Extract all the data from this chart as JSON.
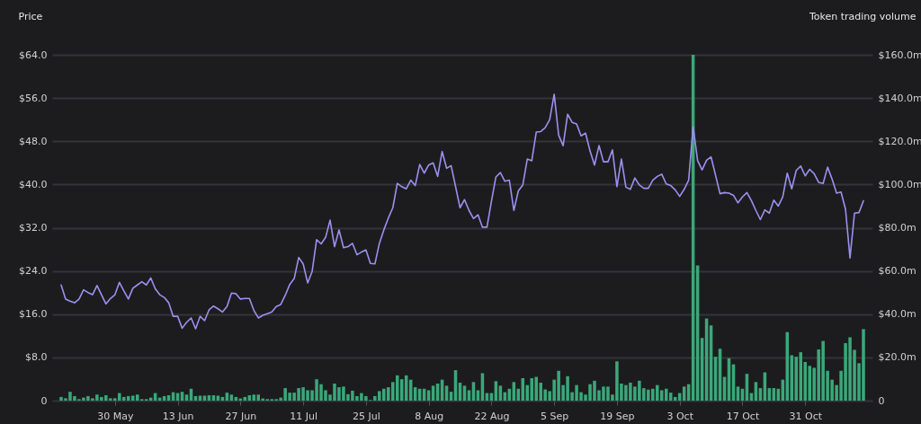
{
  "chart_data": {
    "type": "line",
    "ylabel": "Price",
    "y2label": "Token trading volume",
    "x": [
      "--05-18",
      "--05-19",
      "--05-20",
      "--05-21",
      "--05-22",
      "--05-23",
      "--05-24",
      "--05-25",
      "--05-26",
      "--05-27",
      "--05-28",
      "--05-29",
      "--05-30",
      "--05-31",
      "--06-01",
      "--06-02",
      "--06-03",
      "--06-04",
      "--06-05",
      "--06-06",
      "--06-07",
      "--06-08",
      "--06-09",
      "--06-10",
      "--06-11",
      "--06-12",
      "--06-13",
      "--06-14",
      "--06-15",
      "--06-16",
      "--06-17",
      "--06-18",
      "--06-19",
      "--06-20",
      "--06-21",
      "--06-22",
      "--06-23",
      "--06-24",
      "--06-25",
      "--06-26",
      "--06-27",
      "--06-28",
      "--06-29",
      "--06-30",
      "--07-01",
      "--07-02",
      "--07-03",
      "--07-04",
      "--07-05",
      "--07-06",
      "--07-07",
      "--07-08",
      "--07-09",
      "--07-10",
      "--07-11",
      "--07-12",
      "--07-13",
      "--07-14",
      "--07-15",
      "--07-16",
      "--07-17",
      "--07-18",
      "--07-19",
      "--07-20",
      "--07-21",
      "--07-22",
      "--07-23",
      "--07-24",
      "--07-25",
      "--07-26",
      "--07-27",
      "--07-28",
      "--07-29",
      "--07-30",
      "--07-31",
      "--08-01",
      "--08-02",
      "--08-03",
      "--08-04",
      "--08-05",
      "--08-06",
      "--08-07",
      "--08-08",
      "--08-09",
      "--08-10",
      "--08-11",
      "--08-12",
      "--08-13",
      "--08-14",
      "--08-15",
      "--08-16",
      "--08-17",
      "--08-18",
      "--08-19",
      "--08-20",
      "--08-21",
      "--08-22",
      "--08-23",
      "--08-24",
      "--08-25",
      "--08-26",
      "--08-27",
      "--08-28",
      "--08-29",
      "--08-30",
      "--08-31",
      "--09-01",
      "--09-02",
      "--09-03",
      "--09-04",
      "--09-05",
      "--09-06",
      "--09-07",
      "--09-08",
      "--09-09",
      "--09-10",
      "--09-11",
      "--09-12",
      "--09-13",
      "--09-14",
      "--09-15",
      "--09-16",
      "--09-17",
      "--09-18",
      "--09-19",
      "--09-20",
      "--09-21",
      "--09-22",
      "--09-23",
      "--09-24",
      "--09-25",
      "--09-26",
      "--09-27",
      "--09-28",
      "--09-29",
      "--09-30",
      "--10-01",
      "--10-02",
      "--10-03",
      "--10-04",
      "--10-05",
      "--10-06",
      "--10-07",
      "--10-08",
      "--10-09",
      "--10-10",
      "--10-11",
      "--10-12",
      "--10-13",
      "--10-14",
      "--10-15",
      "--10-16",
      "--10-17",
      "--10-18",
      "--10-19",
      "--10-20",
      "--10-21",
      "--10-22",
      "--10-23",
      "--10-24",
      "--10-25",
      "--10-26",
      "--10-27",
      "--10-28",
      "--10-29",
      "--10-30",
      "--10-31",
      "--11-01",
      "--11-02",
      "--11-03",
      "--11-04",
      "--11-05",
      "--11-06",
      "--11-07",
      "--11-08",
      "--11-09",
      "--11-10",
      "--11-11",
      "--11-12",
      "--11-13"
    ],
    "series": [
      {
        "type": "bar",
        "axis": "y2",
        "color": "#3aa87a",
        "values": [
          1.7,
          1.1,
          4.1,
          2.1,
          0.7,
          1.4,
          2.1,
          1.1,
          2.8,
          1.7,
          2.5,
          1.1,
          1.1,
          3.5,
          1.7,
          2.1,
          2.3,
          2.8,
          0.7,
          0.7,
          1.4,
          3.5,
          1.4,
          2.1,
          2.5,
          3.9,
          3.5,
          4.1,
          2.8,
          5.5,
          2.1,
          2.3,
          2.3,
          2.5,
          2.5,
          2.3,
          1.7,
          3.7,
          2.8,
          1.7,
          1.0,
          1.7,
          2.5,
          2.8,
          2.8,
          1.0,
          0.7,
          0.7,
          0.7,
          1.4,
          5.8,
          3.7,
          3.7,
          5.8,
          6.2,
          4.8,
          4.8,
          9.9,
          7.6,
          4.8,
          2.8,
          7.9,
          6.2,
          6.5,
          3.0,
          4.6,
          2.1,
          3.5,
          2.1,
          0.3,
          2.1,
          4.4,
          5.5,
          6.2,
          8.6,
          11.7,
          9.9,
          11.7,
          9.7,
          6.2,
          5.5,
          5.5,
          4.8,
          6.9,
          7.9,
          9.7,
          6.9,
          4.1,
          14.1,
          8.3,
          6.9,
          4.8,
          8.6,
          4.8,
          12.7,
          3.5,
          3.5,
          9.0,
          6.9,
          3.9,
          5.5,
          8.6,
          5.5,
          10.4,
          7.2,
          10.4,
          11.0,
          8.3,
          5.2,
          4.4,
          9.7,
          13.8,
          7.2,
          11.3,
          3.9,
          7.2,
          3.9,
          2.8,
          7.6,
          9.2,
          4.8,
          6.5,
          6.5,
          2.8,
          18.2,
          7.9,
          7.2,
          8.3,
          6.5,
          9.2,
          5.8,
          5.1,
          5.5,
          7.2,
          4.8,
          5.5,
          3.7,
          1.7,
          3.5,
          6.5,
          7.6,
          160,
          62.5,
          29.0,
          38.0,
          34.8,
          20.3,
          24.0,
          11.0,
          19.6,
          16.8,
          6.5,
          5.5,
          12.4,
          3.5,
          8.6,
          5.8,
          13.1,
          5.8,
          5.8,
          5.5,
          9.7,
          31.7,
          21.0,
          20.3,
          22.4,
          17.9,
          16.1,
          15.2,
          23.7,
          27.6,
          13.8,
          9.7,
          7.2,
          13.8,
          26.6,
          29.3,
          23.5,
          17.3,
          33.1
        ]
      },
      {
        "color": "#9d90f0",
        "values": [
          21.4,
          18.8,
          18.4,
          18.1,
          18.8,
          20.5,
          20.0,
          19.6,
          21.3,
          19.6,
          17.9,
          18.9,
          19.6,
          21.9,
          20.3,
          18.8,
          20.8,
          21.4,
          22.0,
          21.4,
          22.7,
          20.7,
          19.6,
          19.1,
          18.1,
          15.6,
          15.6,
          13.4,
          14.5,
          15.3,
          13.3,
          15.6,
          14.8,
          16.8,
          17.5,
          17.0,
          16.4,
          17.4,
          19.9,
          19.8,
          18.8,
          18.9,
          18.9,
          16.7,
          15.3,
          15.8,
          16.1,
          16.4,
          17.4,
          17.8,
          19.5,
          21.5,
          22.6,
          26.5,
          25.3,
          21.8,
          23.9,
          29.8,
          29.0,
          30.2,
          33.4,
          28.5,
          31.6,
          28.3,
          28.5,
          29.1,
          27.0,
          27.5,
          27.9,
          25.4,
          25.3,
          29.1,
          31.6,
          33.8,
          35.7,
          40.2,
          39.6,
          39.2,
          40.8,
          39.8,
          43.7,
          42.1,
          43.6,
          44.0,
          41.5,
          46.1,
          43.0,
          43.5,
          39.6,
          35.7,
          37.2,
          35.2,
          33.7,
          34.4,
          32.1,
          32.1,
          36.9,
          41.4,
          42.2,
          40.6,
          40.8,
          35.2,
          38.8,
          39.9,
          44.7,
          44.4,
          49.7,
          49.8,
          50.5,
          52.0,
          56.7,
          49.1,
          47.2,
          53.0,
          51.5,
          51.2,
          49.0,
          49.5,
          46.2,
          43.6,
          47.2,
          44.2,
          44.2,
          46.4,
          39.6,
          44.7,
          39.5,
          39.1,
          41.2,
          39.9,
          39.3,
          39.3,
          40.8,
          41.5,
          41.9,
          40.1,
          39.8,
          39.0,
          37.8,
          39.1,
          40.8,
          50.7,
          44.4,
          42.7,
          44.5,
          45.1,
          41.7,
          38.3,
          38.5,
          38.4,
          38.0,
          36.6,
          37.7,
          38.5,
          37.0,
          35.2,
          33.5,
          35.3,
          34.7,
          37.1,
          36.0,
          37.7,
          42.1,
          39.2,
          42.6,
          43.4,
          41.6,
          42.8,
          42.0,
          40.4,
          40.2,
          43.2,
          41.0,
          38.4,
          38.6,
          35.4,
          26.4,
          34.7,
          34.8,
          37.0
        ]
      }
    ],
    "xlim": [
      "--05-17",
      "--11-14"
    ],
    "xticks": [
      {
        "value": "--05-30",
        "label": "30 May"
      },
      {
        "value": "--06-13",
        "label": "13 Jun"
      },
      {
        "value": "--06-27",
        "label": "27 Jun"
      },
      {
        "value": "--07-11",
        "label": "11 Jul"
      },
      {
        "value": "--07-25",
        "label": "25 Jul"
      },
      {
        "value": "--08-08",
        "label": "8 Aug"
      },
      {
        "value": "--08-22",
        "label": "22 Aug"
      },
      {
        "value": "--09-05",
        "label": "5 Sep"
      },
      {
        "value": "--09-19",
        "label": "19 Sep"
      },
      {
        "value": "--10-03",
        "label": "3 Oct"
      },
      {
        "value": "--10-17",
        "label": "17 Oct"
      },
      {
        "value": "--10-31",
        "label": "31 Oct"
      }
    ],
    "ylim": [
      0,
      64
    ],
    "yticks": [
      0,
      {
        "value": 8,
        "label": "$8.0"
      },
      {
        "value": 16,
        "label": "$16.0"
      },
      {
        "value": 24,
        "label": "$24.0"
      },
      {
        "value": 32,
        "label": "$32.0"
      },
      {
        "value": 40,
        "label": "$40.0"
      },
      {
        "value": 48,
        "label": "$48.0"
      },
      {
        "value": 56,
        "label": "$56.0"
      },
      {
        "value": 64,
        "label": "$64.0"
      }
    ],
    "y2lim": [
      0,
      160
    ],
    "y2ticks": [
      0,
      {
        "value": 20,
        "label": "$20.0m"
      },
      {
        "value": 40,
        "label": "$40.0m"
      },
      {
        "value": 60,
        "label": "$60.0m"
      },
      {
        "value": 80,
        "label": "$80.0m"
      },
      {
        "value": 100,
        "label": "$100.0m"
      },
      {
        "value": 120,
        "label": "$120.0m"
      },
      {
        "value": 140,
        "label": "$140.0m"
      },
      {
        "value": 160,
        "label": "$160.0m"
      }
    ],
    "grid": "y"
  }
}
